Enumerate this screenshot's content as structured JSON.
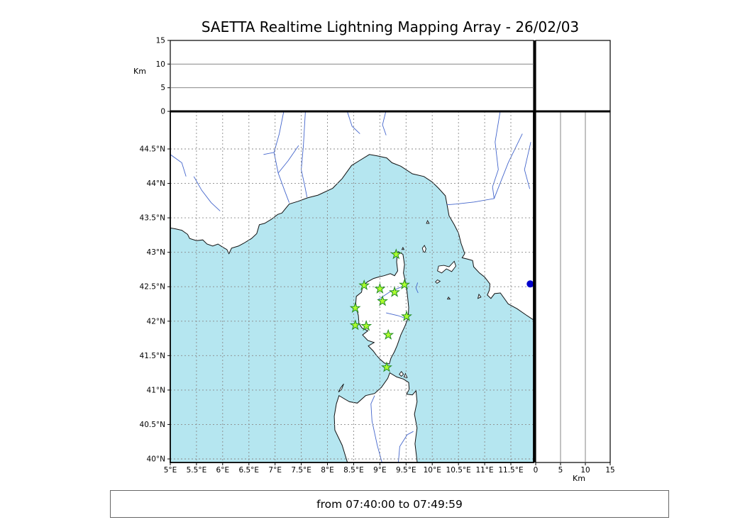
{
  "title": "SAETTA Realtime Lightning Mapping Array - 26/02/03",
  "footer": {
    "time_range": "from 07:40:00 to 07:49:59"
  },
  "colors": {
    "sea": "#b5e6f0",
    "land": "#ffffff",
    "coastline": "#111111",
    "river": "#4466cc",
    "grid": "#8a8a8a",
    "panel_line": "#777777",
    "station_fill": "#adff2f",
    "station_edge": "#228b22",
    "event_fill": "#0000cc"
  },
  "alt_axis": {
    "unit": "Km",
    "tick_labels": [
      "0",
      "5",
      "10",
      "15"
    ],
    "tick_values": [
      0,
      5,
      10,
      15
    ],
    "max": 15,
    "gridline_values": [
      5,
      10
    ]
  },
  "map_axes": {
    "lon_tick_labels": [
      "5°E",
      "5.5°E",
      "6°E",
      "6.5°E",
      "7°E",
      "7.5°E",
      "8°E",
      "8.5°E",
      "9°E",
      "9.5°E",
      "10°E",
      "10.5°E",
      "11°E",
      "11.5°E"
    ],
    "lon_tick_values": [
      5,
      5.5,
      6,
      6.5,
      7,
      7.5,
      8,
      8.5,
      9,
      9.5,
      10,
      10.5,
      11,
      11.5
    ],
    "lat_tick_labels": [
      "40°N",
      "40.5°N",
      "41°N",
      "41.5°N",
      "42°N",
      "42.5°N",
      "43°N",
      "43.5°N",
      "44°N",
      "44.5°N"
    ],
    "lat_tick_values": [
      40,
      40.5,
      41,
      41.5,
      42,
      42.5,
      43,
      43.5,
      44,
      44.5
    ]
  },
  "chart_data": {
    "type": "scatter",
    "title": "SAETTA Realtime Lightning Mapping Array - 26/02/03",
    "time_window": "from 07:40:00 to 07:49:59",
    "map_panel": {
      "lon_range": [
        5.0,
        11.93
      ],
      "lat_range": [
        39.95,
        45.05
      ],
      "stations_lon_lat": [
        [
          9.31,
          42.97
        ],
        [
          8.7,
          42.52
        ],
        [
          9.0,
          42.47
        ],
        [
          9.47,
          42.53
        ],
        [
          9.28,
          42.42
        ],
        [
          9.05,
          42.29
        ],
        [
          8.53,
          42.19
        ],
        [
          9.51,
          42.07
        ],
        [
          8.53,
          41.94
        ],
        [
          8.74,
          41.93
        ],
        [
          9.16,
          41.8
        ],
        [
          9.13,
          41.33
        ]
      ],
      "events_lon_lat": [
        [
          11.87,
          42.54
        ]
      ]
    },
    "altitude_panels": {
      "unit": "Km",
      "range": [
        0,
        15
      ],
      "ticks": [
        0,
        5,
        10,
        15
      ],
      "gridlines_km": [
        5,
        10
      ]
    }
  },
  "geo": {
    "mainland": [
      [
        4.95,
        43.36
      ],
      [
        5.1,
        43.34
      ],
      [
        5.22,
        43.32
      ],
      [
        5.33,
        43.26
      ],
      [
        5.37,
        43.2
      ],
      [
        5.5,
        43.17
      ],
      [
        5.62,
        43.18
      ],
      [
        5.7,
        43.12
      ],
      [
        5.81,
        43.09
      ],
      [
        5.91,
        43.12
      ],
      [
        5.99,
        43.08
      ],
      [
        6.08,
        43.04
      ],
      [
        6.12,
        42.98
      ],
      [
        6.17,
        43.06
      ],
      [
        6.3,
        43.09
      ],
      [
        6.4,
        43.13
      ],
      [
        6.55,
        43.2
      ],
      [
        6.65,
        43.27
      ],
      [
        6.7,
        43.4
      ],
      [
        6.8,
        43.42
      ],
      [
        6.93,
        43.48
      ],
      [
        7.05,
        43.55
      ],
      [
        7.13,
        43.57
      ],
      [
        7.27,
        43.7
      ],
      [
        7.44,
        43.74
      ],
      [
        7.62,
        43.79
      ],
      [
        7.82,
        43.83
      ],
      [
        8.1,
        43.93
      ],
      [
        8.28,
        44.07
      ],
      [
        8.46,
        44.26
      ],
      [
        8.63,
        44.34
      ],
      [
        8.8,
        44.42
      ],
      [
        8.95,
        44.4
      ],
      [
        9.13,
        44.37
      ],
      [
        9.23,
        44.3
      ],
      [
        9.4,
        44.25
      ],
      [
        9.62,
        44.14
      ],
      [
        9.84,
        44.1
      ],
      [
        10.0,
        44.02
      ],
      [
        10.12,
        43.93
      ],
      [
        10.25,
        43.82
      ],
      [
        10.28,
        43.7
      ],
      [
        10.32,
        43.53
      ],
      [
        10.42,
        43.4
      ],
      [
        10.5,
        43.28
      ],
      [
        10.55,
        43.13
      ],
      [
        10.62,
        42.98
      ],
      [
        10.57,
        42.92
      ],
      [
        10.68,
        42.9
      ],
      [
        10.77,
        42.88
      ],
      [
        10.79,
        42.79
      ],
      [
        10.9,
        42.7
      ],
      [
        11.0,
        42.64
      ],
      [
        11.1,
        42.54
      ],
      [
        11.09,
        42.45
      ],
      [
        11.05,
        42.38
      ],
      [
        11.12,
        42.33
      ],
      [
        11.19,
        42.4
      ],
      [
        11.3,
        42.41
      ],
      [
        11.45,
        42.25
      ],
      [
        11.62,
        42.18
      ],
      [
        11.79,
        42.09
      ],
      [
        11.97,
        42.0
      ],
      [
        11.97,
        45.1
      ],
      [
        4.95,
        45.1
      ]
    ],
    "corsica": [
      [
        9.35,
        43.01
      ],
      [
        9.44,
        42.97
      ],
      [
        9.47,
        42.82
      ],
      [
        9.45,
        42.7
      ],
      [
        9.48,
        42.6
      ],
      [
        9.52,
        42.42
      ],
      [
        9.55,
        42.2
      ],
      [
        9.54,
        42.05
      ],
      [
        9.48,
        41.93
      ],
      [
        9.4,
        41.8
      ],
      [
        9.33,
        41.65
      ],
      [
        9.28,
        41.56
      ],
      [
        9.21,
        41.46
      ],
      [
        9.18,
        41.38
      ],
      [
        9.09,
        41.39
      ],
      [
        9.0,
        41.45
      ],
      [
        8.93,
        41.51
      ],
      [
        8.87,
        41.57
      ],
      [
        8.78,
        41.64
      ],
      [
        8.89,
        41.69
      ],
      [
        8.77,
        41.72
      ],
      [
        8.67,
        41.8
      ],
      [
        8.77,
        41.86
      ],
      [
        8.66,
        41.9
      ],
      [
        8.6,
        41.97
      ],
      [
        8.59,
        42.08
      ],
      [
        8.56,
        42.17
      ],
      [
        8.54,
        42.26
      ],
      [
        8.55,
        42.36
      ],
      [
        8.65,
        42.42
      ],
      [
        8.67,
        42.5
      ],
      [
        8.76,
        42.57
      ],
      [
        8.88,
        42.62
      ],
      [
        8.97,
        42.64
      ],
      [
        9.08,
        42.66
      ],
      [
        9.2,
        42.69
      ],
      [
        9.28,
        42.66
      ],
      [
        9.34,
        42.73
      ],
      [
        9.32,
        42.86
      ],
      [
        9.33,
        42.95
      ]
    ],
    "sardinia": [
      [
        8.4,
        39.9
      ],
      [
        8.28,
        40.2
      ],
      [
        8.14,
        40.42
      ],
      [
        8.13,
        40.62
      ],
      [
        8.17,
        40.8
      ],
      [
        8.22,
        40.92
      ],
      [
        8.35,
        40.86
      ],
      [
        8.42,
        40.83
      ],
      [
        8.57,
        40.81
      ],
      [
        8.73,
        40.92
      ],
      [
        8.9,
        40.95
      ],
      [
        9.03,
        41.04
      ],
      [
        9.15,
        41.17
      ],
      [
        9.19,
        41.25
      ],
      [
        9.32,
        41.19
      ],
      [
        9.45,
        41.16
      ],
      [
        9.55,
        41.11
      ],
      [
        9.56,
        41.01
      ],
      [
        9.51,
        40.94
      ],
      [
        9.62,
        40.93
      ],
      [
        9.69,
        40.99
      ],
      [
        9.71,
        40.83
      ],
      [
        9.66,
        40.65
      ],
      [
        9.71,
        40.45
      ],
      [
        9.67,
        40.22
      ],
      [
        9.72,
        39.9
      ]
    ],
    "islands": [
      [
        [
          10.1,
          42.73
        ],
        [
          10.12,
          42.8
        ],
        [
          10.22,
          42.81
        ],
        [
          10.32,
          42.79
        ],
        [
          10.42,
          42.87
        ],
        [
          10.45,
          42.8
        ],
        [
          10.37,
          42.72
        ],
        [
          10.27,
          42.76
        ],
        [
          10.18,
          42.7
        ]
      ],
      [
        [
          9.83,
          43.01
        ],
        [
          9.81,
          43.06
        ],
        [
          9.85,
          43.1
        ],
        [
          9.88,
          43.05
        ],
        [
          9.86,
          43.0
        ]
      ],
      [
        [
          9.89,
          43.42
        ],
        [
          9.91,
          43.46
        ],
        [
          9.94,
          43.42
        ]
      ],
      [
        [
          10.06,
          42.57
        ],
        [
          10.1,
          42.6
        ],
        [
          10.15,
          42.58
        ],
        [
          10.09,
          42.55
        ]
      ],
      [
        [
          10.29,
          42.32
        ],
        [
          10.31,
          42.35
        ],
        [
          10.34,
          42.32
        ]
      ],
      [
        [
          10.87,
          42.33
        ],
        [
          10.89,
          42.39
        ],
        [
          10.93,
          42.35
        ]
      ],
      [
        [
          9.37,
          41.23
        ],
        [
          9.41,
          41.27
        ],
        [
          9.45,
          41.23
        ],
        [
          9.41,
          41.2
        ]
      ],
      [
        [
          9.46,
          41.19
        ],
        [
          9.49,
          41.24
        ],
        [
          9.52,
          41.18
        ]
      ],
      [
        [
          8.21,
          40.97
        ],
        [
          8.25,
          41.03
        ],
        [
          8.31,
          41.09
        ],
        [
          8.27,
          41.01
        ]
      ],
      [
        [
          9.42,
          43.04
        ],
        [
          9.44,
          43.07
        ],
        [
          9.46,
          43.04
        ]
      ]
    ],
    "rivers": [
      [
        [
          7.17,
          45.06
        ],
        [
          7.08,
          44.72
        ],
        [
          6.98,
          44.45
        ],
        [
          7.06,
          44.15
        ],
        [
          7.18,
          43.9
        ],
        [
          7.27,
          43.72
        ]
      ],
      [
        [
          7.45,
          44.55
        ],
        [
          7.25,
          44.33
        ],
        [
          7.06,
          44.15
        ]
      ],
      [
        [
          6.78,
          44.42
        ],
        [
          6.98,
          44.45
        ]
      ],
      [
        [
          7.58,
          45.06
        ],
        [
          7.54,
          44.55
        ],
        [
          7.5,
          44.2
        ],
        [
          7.57,
          43.95
        ],
        [
          7.61,
          43.8
        ]
      ],
      [
        [
          5.45,
          44.1
        ],
        [
          5.6,
          43.9
        ],
        [
          5.78,
          43.72
        ],
        [
          5.95,
          43.6
        ]
      ],
      [
        [
          5.0,
          44.42
        ],
        [
          5.22,
          44.3
        ],
        [
          5.3,
          44.1
        ]
      ],
      [
        [
          8.37,
          45.06
        ],
        [
          8.47,
          44.83
        ],
        [
          8.62,
          44.72
        ]
      ],
      [
        [
          9.12,
          45.06
        ],
        [
          9.05,
          44.85
        ],
        [
          9.12,
          44.7
        ]
      ],
      [
        [
          11.3,
          45.06
        ],
        [
          11.2,
          44.6
        ],
        [
          11.26,
          44.2
        ],
        [
          11.15,
          43.95
        ],
        [
          11.18,
          43.78
        ],
        [
          10.8,
          43.73
        ],
        [
          10.45,
          43.7
        ],
        [
          10.28,
          43.69
        ]
      ],
      [
        [
          11.72,
          44.72
        ],
        [
          11.45,
          44.3
        ],
        [
          11.18,
          43.78
        ]
      ],
      [
        [
          11.88,
          44.6
        ],
        [
          11.76,
          44.2
        ],
        [
          11.86,
          43.92
        ]
      ],
      [
        [
          8.96,
          42.31
        ],
        [
          9.2,
          42.43
        ],
        [
          9.45,
          42.51
        ]
      ],
      [
        [
          9.12,
          42.12
        ],
        [
          9.35,
          42.08
        ],
        [
          9.53,
          42.03
        ]
      ],
      [
        [
          9.05,
          39.92
        ],
        [
          8.95,
          40.2
        ],
        [
          8.85,
          40.55
        ],
        [
          8.83,
          40.8
        ],
        [
          8.9,
          40.92
        ]
      ],
      [
        [
          9.35,
          39.92
        ],
        [
          9.38,
          40.18
        ],
        [
          9.52,
          40.35
        ],
        [
          9.64,
          40.4
        ]
      ],
      [
        [
          9.72,
          42.56
        ],
        [
          9.69,
          42.48
        ],
        [
          9.73,
          42.41
        ]
      ]
    ]
  }
}
